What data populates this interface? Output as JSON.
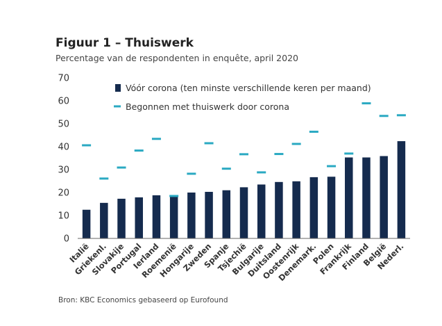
{
  "title": "Figuur 1 – Thuiswerk",
  "subtitle": "Percentage van de respondenten in enquête, april 2020",
  "source": "Bron: KBC Economics gebaseerd op Eurofound",
  "colors": {
    "bar": "#152b4e",
    "marker": "#2aa9c2",
    "axis": "#666666"
  },
  "chart_data": {
    "type": "bar",
    "title": "Figuur 1 – Thuiswerk",
    "subtitle": "Percentage van de respondenten in enquête, april 2020",
    "ylim": [
      0,
      70
    ],
    "yticks": [
      0,
      10,
      20,
      30,
      40,
      50,
      60,
      70
    ],
    "grid": false,
    "legend_position": "top-left",
    "categories": [
      "Italië",
      "Griekenl.",
      "Slovakije",
      "Portugal",
      "Ierland",
      "Roemenië",
      "Hongarije",
      "Zweden",
      "Spanje",
      "Tsjechië",
      "Bulgarije",
      "Duitsland",
      "Oostenrijk",
      "Denemark.",
      "Polen",
      "Frankrijk",
      "Finland",
      "België",
      "Nederl."
    ],
    "series": [
      {
        "name": "Vóór corona (ten minste verschillende keren per maand)",
        "type": "bar",
        "values": [
          12.5,
          15.5,
          17.3,
          17.9,
          18.8,
          18.2,
          20.0,
          20.3,
          21.0,
          22.3,
          23.5,
          24.6,
          24.9,
          26.7,
          26.9,
          35.3,
          35.3,
          35.9,
          42.4
        ]
      },
      {
        "name": "Begonnen met thuiswerk door corona",
        "type": "marker",
        "values": [
          40.6,
          26.1,
          30.9,
          38.3,
          43.4,
          18.5,
          28.2,
          41.5,
          30.4,
          36.7,
          28.8,
          36.8,
          41.2,
          46.5,
          31.5,
          37.0,
          58.9,
          53.4,
          53.7
        ]
      }
    ]
  }
}
